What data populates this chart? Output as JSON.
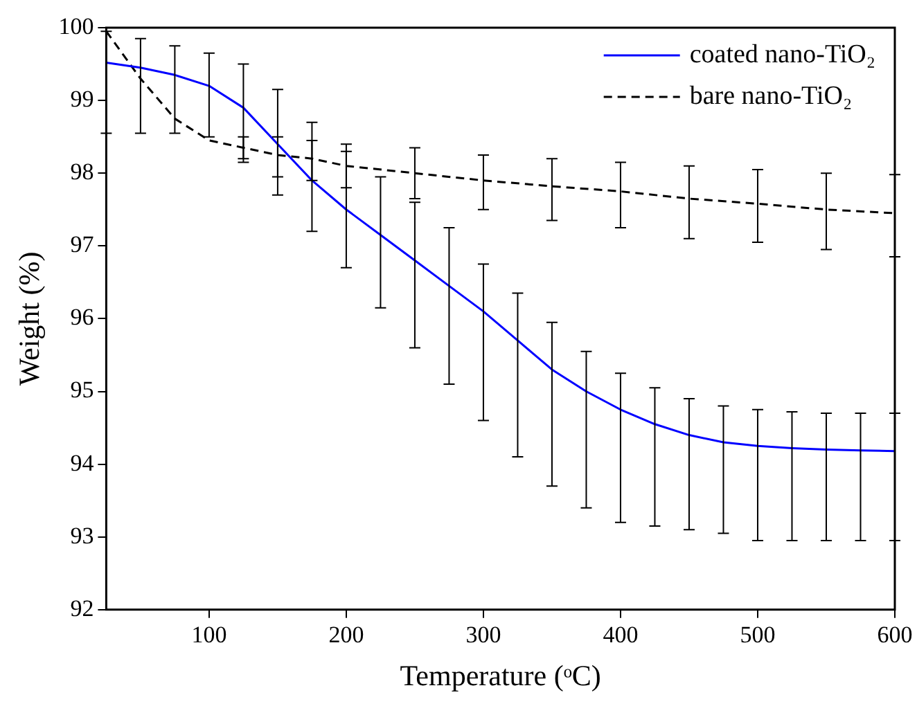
{
  "chart_data": {
    "type": "line",
    "xlabel": "Temperature (ᵒC)",
    "ylabel": "Weight (%)",
    "xlim": [
      25,
      600
    ],
    "xticks": [
      100,
      200,
      300,
      400,
      500,
      600
    ],
    "ylim": [
      92,
      100
    ],
    "yticks": [
      92,
      93,
      94,
      95,
      96,
      97,
      98,
      99,
      100
    ],
    "grid": false,
    "legend": "top right",
    "marker": "none",
    "series": [
      {
        "name": "coated nano-TiO₂",
        "color": "#0000ff",
        "line_style": "solid",
        "x": [
          25,
          50,
          75,
          100,
          125,
          150,
          175,
          200,
          225,
          250,
          275,
          300,
          325,
          350,
          375,
          400,
          425,
          450,
          475,
          500,
          525,
          550,
          575,
          600
        ],
        "values": [
          99.52,
          99.45,
          99.35,
          99.2,
          98.9,
          98.4,
          97.9,
          97.5,
          97.15,
          96.8,
          96.45,
          96.1,
          95.7,
          95.3,
          95.0,
          94.75,
          94.55,
          94.4,
          94.3,
          94.25,
          94.22,
          94.2,
          94.19,
          94.18
        ],
        "errors": [
          [
            98.55,
            99.95
          ],
          [
            98.55,
            99.85
          ],
          [
            98.55,
            99.75
          ],
          [
            98.5,
            99.65
          ],
          [
            98.2,
            99.5
          ],
          [
            97.7,
            99.15
          ],
          [
            97.2,
            98.7
          ],
          [
            96.7,
            98.3
          ],
          [
            96.15,
            97.95
          ],
          [
            95.6,
            97.6
          ],
          [
            95.1,
            97.25
          ],
          [
            94.6,
            96.75
          ],
          [
            94.1,
            96.35
          ],
          [
            93.7,
            95.95
          ],
          [
            93.4,
            95.55
          ],
          [
            93.2,
            95.25
          ],
          [
            93.15,
            95.05
          ],
          [
            93.1,
            94.9
          ],
          [
            93.05,
            94.8
          ],
          [
            92.95,
            94.75
          ],
          [
            92.95,
            94.72
          ],
          [
            92.95,
            94.7
          ],
          [
            92.95,
            94.7
          ],
          [
            92.95,
            94.7
          ]
        ]
      },
      {
        "name": "bare nano-TiO₂",
        "color": "#000000",
        "line_style": "dashed",
        "x": [
          25,
          50,
          75,
          100,
          125,
          150,
          175,
          200,
          250,
          300,
          350,
          400,
          450,
          500,
          550,
          600
        ],
        "values": [
          99.95,
          99.3,
          98.75,
          98.45,
          98.35,
          98.25,
          98.2,
          98.1,
          98.0,
          97.9,
          97.82,
          97.75,
          97.65,
          97.58,
          97.5,
          97.45
        ],
        "errors": [
          null,
          null,
          null,
          null,
          [
            98.15,
            98.5
          ],
          [
            97.95,
            98.5
          ],
          [
            97.9,
            98.45
          ],
          [
            97.8,
            98.4
          ],
          [
            97.65,
            98.35
          ],
          [
            97.5,
            98.25
          ],
          [
            97.35,
            98.2
          ],
          [
            97.25,
            98.15
          ],
          [
            97.1,
            98.1
          ],
          [
            97.05,
            98.05
          ],
          [
            96.95,
            98.0
          ],
          [
            96.85,
            97.98
          ]
        ]
      }
    ]
  }
}
